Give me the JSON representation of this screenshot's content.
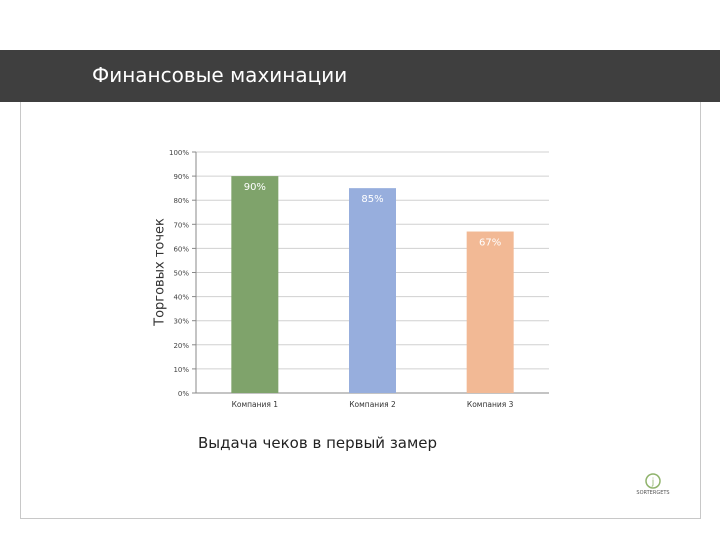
{
  "slide": {
    "title": "Финансовые махинации",
    "caption": "Выдача чеков в первый замер",
    "logo_text": "SORTERGETS"
  },
  "chart_data": {
    "type": "bar",
    "title": "",
    "xlabel": "",
    "ylabel": "Торговых точек",
    "categories": [
      "Компания 1",
      "Компания 2",
      "Компания 3"
    ],
    "values": [
      90,
      85,
      67
    ],
    "data_labels": [
      "90%",
      "85%",
      "67%"
    ],
    "bar_colors": [
      "#7fa36b",
      "#97aedd",
      "#f2b995"
    ],
    "label_colors": [
      "#ffffff",
      "#ffffff",
      "#ffffff"
    ],
    "ylim": [
      0,
      100
    ],
    "yticks": [
      "0%",
      "10%",
      "20%",
      "30%",
      "40%",
      "50%",
      "60%",
      "70%",
      "80%",
      "90%",
      "100%"
    ],
    "grid": true,
    "legend": "none"
  },
  "colors": {
    "title_bar": "#3f3f3f",
    "grid": "#d0d0d0",
    "axis": "#888888"
  }
}
